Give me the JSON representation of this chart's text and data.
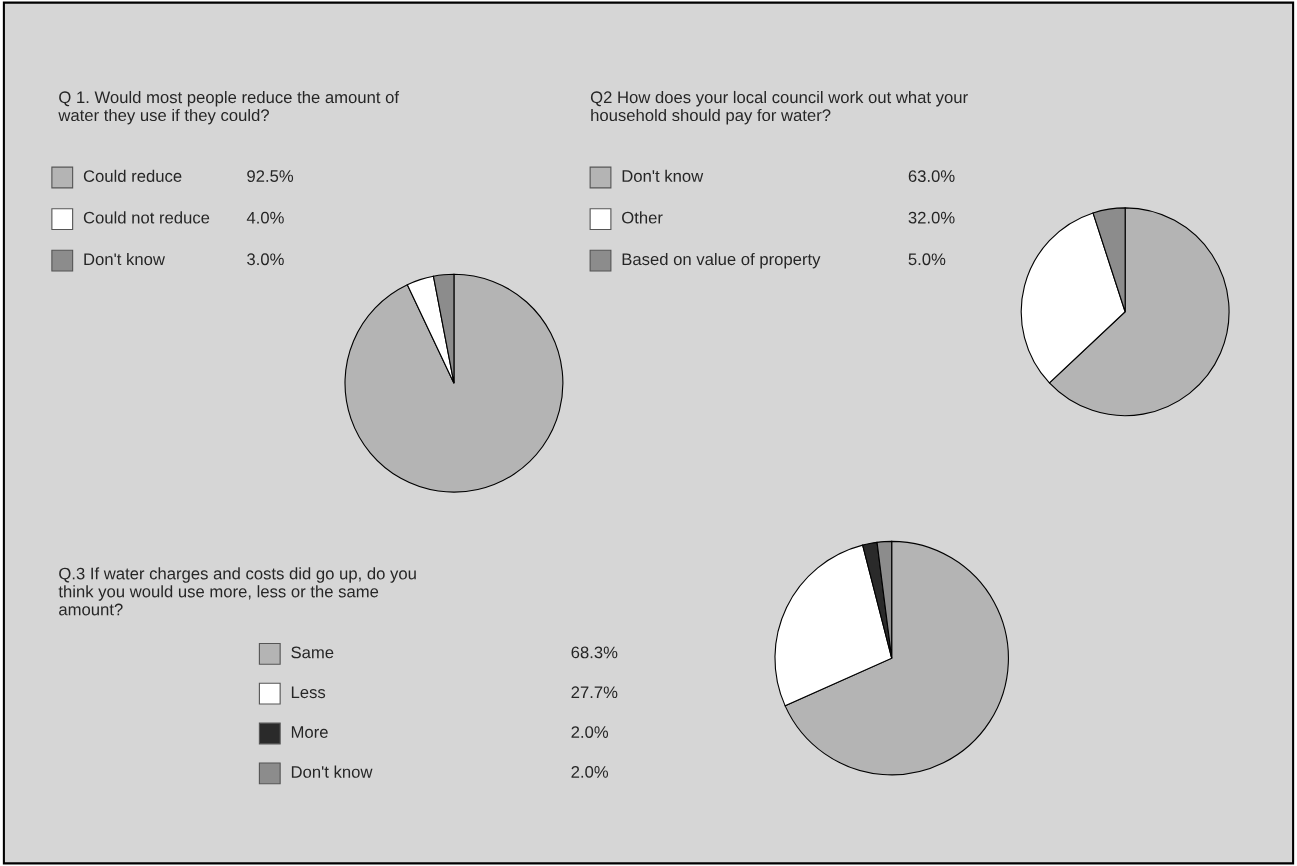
{
  "chart_data": [
    {
      "type": "pie",
      "title": "Q 1. Would most people reduce the amount of\nwater they use if they could?",
      "categories": [
        "Could reduce",
        "Could not reduce",
        "Don't know"
      ],
      "values": [
        92.5,
        4.0,
        3.0
      ],
      "colors": [
        "#b4b4b4",
        "#ffffff",
        "#8c8c8c"
      ],
      "value_labels": [
        "92.5%",
        "4.0%",
        "3.0%"
      ],
      "legend": "left"
    },
    {
      "type": "pie",
      "title": "Q2 How does your local council work out what your\nhousehold should pay for water?",
      "categories": [
        "Don't know",
        "Other",
        "Based on value of property"
      ],
      "values": [
        63.0,
        32.0,
        5.0
      ],
      "colors": [
        "#b4b4b4",
        "#ffffff",
        "#8c8c8c"
      ],
      "value_labels": [
        "63.0%",
        "32.0%",
        "5.0%"
      ],
      "legend": "left"
    },
    {
      "type": "pie",
      "title": "Q.3 If water charges and costs did go up, do you\nthink you would use more, less or the same\namount?",
      "categories": [
        "Same",
        "Less",
        "More",
        "Don't know"
      ],
      "values": [
        68.3,
        27.7,
        2.0,
        2.0
      ],
      "colors": [
        "#b4b4b4",
        "#ffffff",
        "#2a2a2a",
        "#8c8c8c"
      ],
      "value_labels": [
        "68.3%",
        "27.7%",
        "2.0%",
        "2.0%"
      ],
      "legend": "left"
    }
  ]
}
